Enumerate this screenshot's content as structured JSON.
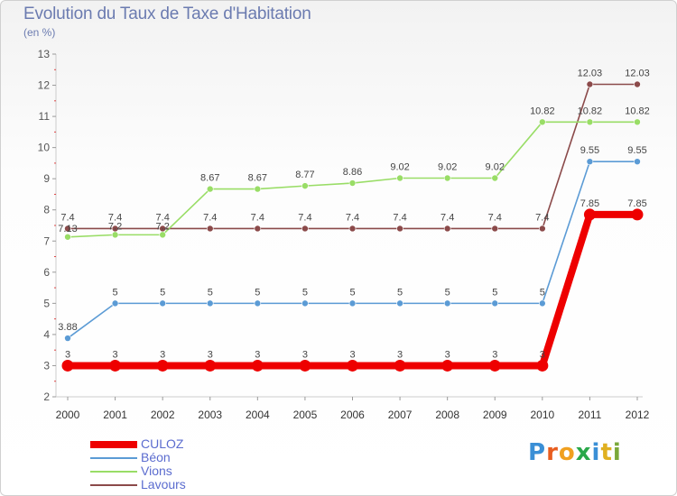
{
  "header": {
    "title": "Evolution du Taux de Taxe d'Habitation",
    "subtitle": "(en %)"
  },
  "chart_data": {
    "type": "line",
    "title": "Evolution du Taux de Taxe d'Habitation",
    "subtitle": "(en %)",
    "xlabel": "",
    "ylabel": "",
    "categories": [
      "2000",
      "2001",
      "2002",
      "2003",
      "2004",
      "2005",
      "2006",
      "2007",
      "2008",
      "2009",
      "2010",
      "2011",
      "2012"
    ],
    "ylim": [
      2,
      13
    ],
    "yticks": [
      2,
      3,
      4,
      5,
      6,
      7,
      8,
      9,
      10,
      11,
      12,
      13
    ],
    "grid": false,
    "legend_position": "bottom-left",
    "series": [
      {
        "name": "CULOZ",
        "color": "#ee0000",
        "values": [
          3,
          3,
          3,
          3,
          3,
          3,
          3,
          3,
          3,
          3,
          3,
          7.85,
          7.85
        ],
        "labels": [
          "3",
          "3",
          "3",
          "3",
          "3",
          "3",
          "3",
          "3",
          "3",
          "3",
          "3",
          "7.85",
          "7.85"
        ]
      },
      {
        "name": "Béon",
        "color": "#5b9bd5",
        "values": [
          3.88,
          5,
          5,
          5,
          5,
          5,
          5,
          5,
          5,
          5,
          5,
          9.55,
          9.55
        ],
        "labels": [
          "3.88",
          "5",
          "5",
          "5",
          "5",
          "5",
          "5",
          "5",
          "5",
          "5",
          "5",
          "9.55",
          "9.55"
        ]
      },
      {
        "name": "Vions",
        "color": "#99dd66",
        "values": [
          7.13,
          7.2,
          7.2,
          8.67,
          8.67,
          8.77,
          8.86,
          9.02,
          9.02,
          9.02,
          10.82,
          10.82,
          10.82
        ],
        "labels": [
          "7.13",
          "7.2",
          "7.2",
          "8.67",
          "8.67",
          "8.77",
          "8.86",
          "9.02",
          "9.02",
          "9.02",
          "10.82",
          "10.82",
          "10.82"
        ]
      },
      {
        "name": "Lavours",
        "color": "#8b4a4a",
        "values": [
          7.4,
          7.4,
          7.4,
          7.4,
          7.4,
          7.4,
          7.4,
          7.4,
          7.4,
          7.4,
          7.4,
          12.03,
          12.03
        ],
        "labels": [
          "7.4",
          "7.4",
          "7.4",
          "7.4",
          "7.4",
          "7.4",
          "7.4",
          "7.4",
          "7.4",
          "7.4",
          "7.4",
          "12.03",
          "12.03"
        ]
      }
    ]
  },
  "legend": {
    "items": [
      {
        "label": "CULOZ",
        "color": "#ee0000"
      },
      {
        "label": "Béon",
        "color": "#5b9bd5"
      },
      {
        "label": "Vions",
        "color": "#99dd66"
      },
      {
        "label": "Lavours",
        "color": "#8b4a4a"
      }
    ]
  },
  "logo": {
    "letters": [
      "P",
      "r",
      "o",
      "x",
      "i",
      "t",
      "i"
    ],
    "colors": [
      "#3a8fd6",
      "#e85d1f",
      "#f0a020",
      "#2aa84a",
      "#3a8fd6",
      "#e0b020",
      "#7aa83a"
    ],
    "icon": "proxiti-logo"
  }
}
